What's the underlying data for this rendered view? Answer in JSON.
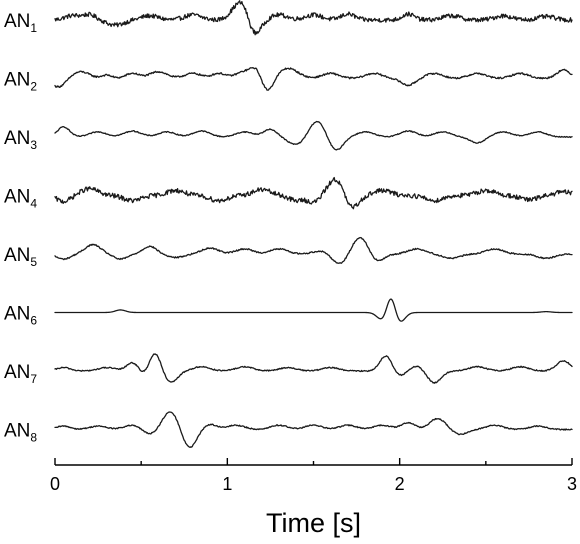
{
  "chart_data": {
    "type": "line",
    "title": "",
    "xlabel": "Time [s]",
    "ylabel": "",
    "xlim": [
      0,
      3
    ],
    "x_ticks": [
      0,
      1,
      2,
      3
    ],
    "x_minor_ticks": [
      0.5,
      1.5,
      2.5
    ],
    "grid": false,
    "legend": "none",
    "line_color": "#1a1a1a",
    "series": [
      {
        "name": "AN",
        "sub": "1",
        "noise": 0.13,
        "events": [
          [
            0.1,
            0.25,
            0.045
          ],
          [
            0.2,
            0.3,
            0.04
          ],
          [
            0.35,
            -0.3,
            0.05
          ],
          [
            0.55,
            0.25,
            0.05
          ],
          [
            0.8,
            0.3,
            0.05
          ],
          [
            1.05,
            0.6,
            0.04
          ],
          [
            1.1,
            0.9,
            0.035
          ],
          [
            1.15,
            -1.0,
            0.04
          ],
          [
            1.3,
            0.3,
            0.05
          ],
          [
            1.5,
            0.3,
            0.05
          ],
          [
            1.7,
            0.35,
            0.04
          ],
          [
            2.05,
            0.35,
            0.035
          ],
          [
            2.3,
            0.25,
            0.05
          ],
          [
            2.6,
            0.25,
            0.05
          ],
          [
            2.85,
            0.2,
            0.05
          ]
        ]
      },
      {
        "name": "AN",
        "sub": "2",
        "noise": 0.05,
        "events": [
          [
            0.02,
            -0.5,
            0.04
          ],
          [
            0.15,
            0.4,
            0.05
          ],
          [
            0.3,
            0.2,
            0.03
          ],
          [
            0.45,
            0.3,
            0.04
          ],
          [
            0.6,
            0.4,
            0.05
          ],
          [
            0.8,
            0.3,
            0.05
          ],
          [
            0.95,
            0.3,
            0.04
          ],
          [
            1.1,
            0.4,
            0.05
          ],
          [
            1.18,
            0.9,
            0.035
          ],
          [
            1.22,
            -1.1,
            0.04
          ],
          [
            1.35,
            0.6,
            0.06
          ],
          [
            1.6,
            0.3,
            0.05
          ],
          [
            1.85,
            0.3,
            0.05
          ],
          [
            2.05,
            -0.4,
            0.04
          ],
          [
            2.2,
            0.3,
            0.05
          ],
          [
            2.45,
            0.3,
            0.05
          ],
          [
            2.7,
            0.3,
            0.05
          ],
          [
            2.95,
            0.5,
            0.04
          ]
        ]
      },
      {
        "name": "AN",
        "sub": "3",
        "noise": 0.03,
        "events": [
          [
            0.05,
            0.6,
            0.035
          ],
          [
            0.25,
            0.3,
            0.05
          ],
          [
            0.45,
            0.35,
            0.05
          ],
          [
            0.65,
            0.3,
            0.05
          ],
          [
            0.85,
            0.35,
            0.05
          ],
          [
            1.1,
            0.3,
            0.05
          ],
          [
            1.25,
            0.45,
            0.04
          ],
          [
            1.4,
            -0.45,
            0.05
          ],
          [
            1.52,
            0.95,
            0.045
          ],
          [
            1.63,
            -0.8,
            0.04
          ],
          [
            1.8,
            0.3,
            0.05
          ],
          [
            2.05,
            0.35,
            0.05
          ],
          [
            2.25,
            0.3,
            0.05
          ],
          [
            2.45,
            -0.35,
            0.04
          ],
          [
            2.6,
            0.3,
            0.05
          ],
          [
            2.8,
            0.3,
            0.05
          ]
        ]
      },
      {
        "name": "AN",
        "sub": "4",
        "noise": 0.14,
        "events": [
          [
            0.05,
            -0.35,
            0.04
          ],
          [
            0.2,
            0.4,
            0.05
          ],
          [
            0.45,
            -0.3,
            0.05
          ],
          [
            0.7,
            0.3,
            0.05
          ],
          [
            0.95,
            -0.3,
            0.05
          ],
          [
            1.2,
            0.35,
            0.05
          ],
          [
            1.4,
            -0.3,
            0.04
          ],
          [
            1.5,
            -0.4,
            0.035
          ],
          [
            1.63,
            1.0,
            0.045
          ],
          [
            1.72,
            -0.8,
            0.04
          ],
          [
            1.9,
            0.3,
            0.05
          ],
          [
            2.2,
            -0.3,
            0.05
          ],
          [
            2.5,
            0.3,
            0.05
          ],
          [
            2.75,
            -0.25,
            0.05
          ],
          [
            2.95,
            0.2,
            0.05
          ]
        ]
      },
      {
        "name": "AN",
        "sub": "5",
        "noise": 0.04,
        "events": [
          [
            0.05,
            -0.3,
            0.04
          ],
          [
            0.22,
            0.55,
            0.045
          ],
          [
            0.38,
            -0.3,
            0.04
          ],
          [
            0.55,
            0.45,
            0.04
          ],
          [
            0.7,
            -0.2,
            0.05
          ],
          [
            0.9,
            0.35,
            0.05
          ],
          [
            1.1,
            0.3,
            0.05
          ],
          [
            1.3,
            0.3,
            0.05
          ],
          [
            1.55,
            0.2,
            0.05
          ],
          [
            1.65,
            -0.6,
            0.045
          ],
          [
            1.77,
            1.0,
            0.045
          ],
          [
            1.87,
            -0.45,
            0.04
          ],
          [
            2.1,
            0.3,
            0.05
          ],
          [
            2.3,
            -0.25,
            0.05
          ],
          [
            2.55,
            0.3,
            0.05
          ],
          [
            2.85,
            -0.25,
            0.05
          ]
        ]
      },
      {
        "name": "AN",
        "sub": "6",
        "noise": 0.0,
        "events": [
          [
            0.38,
            0.15,
            0.03
          ],
          [
            1.9,
            -0.45,
            0.03
          ],
          [
            1.95,
            1.05,
            0.025
          ],
          [
            2.0,
            -0.6,
            0.03
          ],
          [
            2.85,
            0.05,
            0.03
          ]
        ]
      },
      {
        "name": "AN",
        "sub": "7",
        "noise": 0.035,
        "events": [
          [
            0.05,
            0.2,
            0.04
          ],
          [
            0.3,
            0.2,
            0.05
          ],
          [
            0.45,
            0.5,
            0.035
          ],
          [
            0.52,
            -0.3,
            0.03
          ],
          [
            0.58,
            1.1,
            0.035
          ],
          [
            0.67,
            -0.7,
            0.04
          ],
          [
            0.85,
            0.25,
            0.05
          ],
          [
            1.1,
            0.25,
            0.05
          ],
          [
            1.35,
            0.2,
            0.05
          ],
          [
            1.6,
            0.2,
            0.05
          ],
          [
            1.92,
            0.9,
            0.035
          ],
          [
            2.0,
            -0.3,
            0.035
          ],
          [
            2.1,
            0.3,
            0.04
          ],
          [
            2.2,
            -0.7,
            0.04
          ],
          [
            2.45,
            0.25,
            0.05
          ],
          [
            2.7,
            0.25,
            0.05
          ],
          [
            2.95,
            0.6,
            0.04
          ]
        ]
      },
      {
        "name": "AN",
        "sub": "8",
        "noise": 0.035,
        "events": [
          [
            0.05,
            0.2,
            0.04
          ],
          [
            0.25,
            0.2,
            0.05
          ],
          [
            0.45,
            0.25,
            0.05
          ],
          [
            0.55,
            -0.3,
            0.04
          ],
          [
            0.67,
            1.05,
            0.045
          ],
          [
            0.78,
            -1.1,
            0.04
          ],
          [
            0.9,
            0.3,
            0.04
          ],
          [
            1.05,
            0.25,
            0.05
          ],
          [
            1.3,
            0.25,
            0.05
          ],
          [
            1.5,
            0.25,
            0.05
          ],
          [
            1.7,
            0.25,
            0.05
          ],
          [
            1.9,
            0.25,
            0.05
          ],
          [
            2.05,
            0.4,
            0.04
          ],
          [
            2.22,
            0.65,
            0.045
          ],
          [
            2.35,
            -0.3,
            0.04
          ],
          [
            2.55,
            0.25,
            0.05
          ],
          [
            2.8,
            0.2,
            0.05
          ]
        ]
      }
    ]
  }
}
